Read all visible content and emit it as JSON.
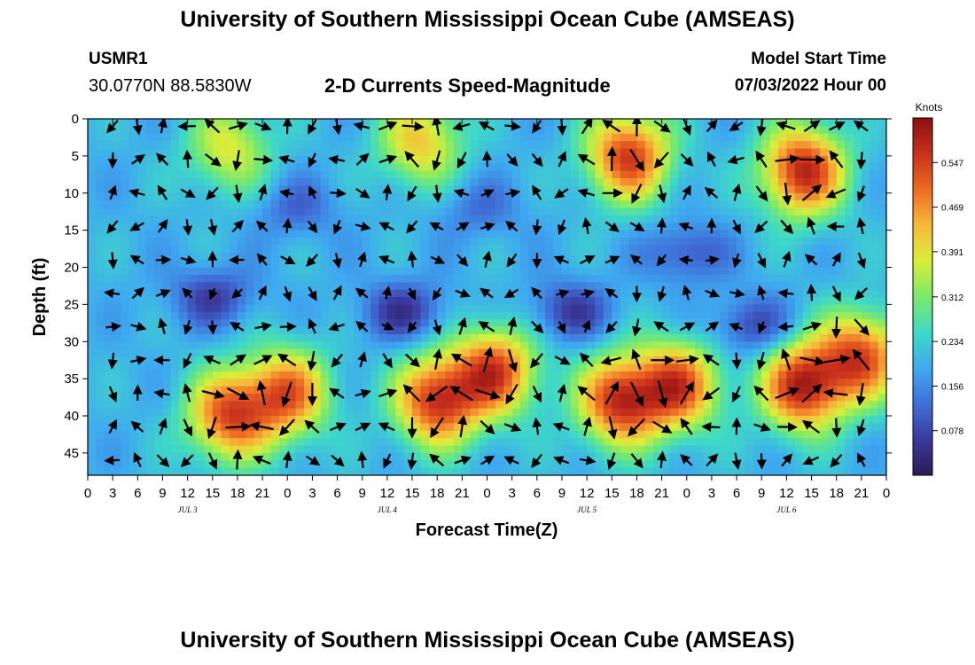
{
  "header": {
    "title": "University of Southern Mississippi Ocean Cube (AMSEAS)",
    "station_id": "USMR1",
    "coords": "30.0770N  88.5830W",
    "chart_title": "2-D Currents Speed-Magnitude",
    "model_start_label": "Model Start Time",
    "model_start_value": "07/03/2022 Hour 00"
  },
  "footer": {
    "title": "University of Southern Mississippi Ocean Cube (AMSEAS)"
  },
  "colors": {
    "scale": [
      "#2b1a55",
      "#3a3a9e",
      "#3f6fd8",
      "#3fa9f0",
      "#3ed9c6",
      "#7bea6a",
      "#d9ee3a",
      "#f7b93a",
      "#ee6a22",
      "#c8301c",
      "#8a1010"
    ]
  },
  "chart_data": {
    "type": "heatmap",
    "title": "2-D Currents Speed-Magnitude",
    "xlabel": "Forecast Time(Z)",
    "ylabel": "Depth (ft)",
    "x_ticks": [
      "0",
      "3",
      "6",
      "9",
      "12",
      "15",
      "18",
      "21",
      "0",
      "3",
      "6",
      "9",
      "12",
      "15",
      "18",
      "21",
      "0",
      "3",
      "6",
      "9",
      "12",
      "15",
      "18",
      "21",
      "0",
      "3",
      "6",
      "9",
      "12",
      "15",
      "18",
      "21",
      "0"
    ],
    "x_range_hours": [
      0,
      96
    ],
    "day_labels": [
      {
        "label": "JUL 3",
        "hour": 12
      },
      {
        "label": "JUL 4",
        "hour": 36
      },
      {
        "label": "JUL 5",
        "hour": 60
      },
      {
        "label": "JUL 6",
        "hour": 84
      }
    ],
    "y_ticks": [
      0,
      5,
      10,
      15,
      20,
      25,
      30,
      35,
      40,
      45
    ],
    "y_range_ft": [
      0,
      48
    ],
    "colorbar": {
      "units": "Knots",
      "ticks": [
        "0.547",
        "0.469",
        "0.391",
        "0.312",
        "0.234",
        "0.156",
        "0.078"
      ],
      "range_knots": [
        0.0,
        0.625
      ]
    },
    "vector_grid": {
      "hour_step": 3,
      "depth_step_ft": 4.5,
      "depth_start_ft": 1
    },
    "speed_cores": [
      {
        "hour": 17,
        "depth_ft": 4,
        "knots": 0.38
      },
      {
        "hour": 40,
        "depth_ft": 3,
        "knots": 0.42
      },
      {
        "hour": 65,
        "depth_ft": 5,
        "knots": 0.55
      },
      {
        "hour": 86,
        "depth_ft": 7,
        "knots": 0.58
      },
      {
        "hour": 17,
        "depth_ft": 40,
        "knots": 0.52
      },
      {
        "hour": 24,
        "depth_ft": 37,
        "knots": 0.5
      },
      {
        "hour": 42,
        "depth_ft": 38,
        "knots": 0.56
      },
      {
        "hour": 49,
        "depth_ft": 34,
        "knots": 0.53
      },
      {
        "hour": 64,
        "depth_ft": 38,
        "knots": 0.56
      },
      {
        "hour": 71,
        "depth_ft": 36,
        "knots": 0.52
      },
      {
        "hour": 86,
        "depth_ft": 36,
        "knots": 0.58
      },
      {
        "hour": 93,
        "depth_ft": 32,
        "knots": 0.52
      }
    ],
    "slow_cores": [
      {
        "hour": 15,
        "depth_ft": 24,
        "knots": 0.06
      },
      {
        "hour": 38,
        "depth_ft": 26,
        "knots": 0.04
      },
      {
        "hour": 58,
        "depth_ft": 26,
        "knots": 0.05
      },
      {
        "hour": 80,
        "depth_ft": 28,
        "knots": 0.06
      },
      {
        "hour": 72,
        "depth_ft": 18,
        "knots": 0.08
      },
      {
        "hour": 25,
        "depth_ft": 12,
        "knots": 0.11
      },
      {
        "hour": 47,
        "depth_ft": 12,
        "knots": 0.12
      }
    ],
    "background_knots": 0.2
  }
}
